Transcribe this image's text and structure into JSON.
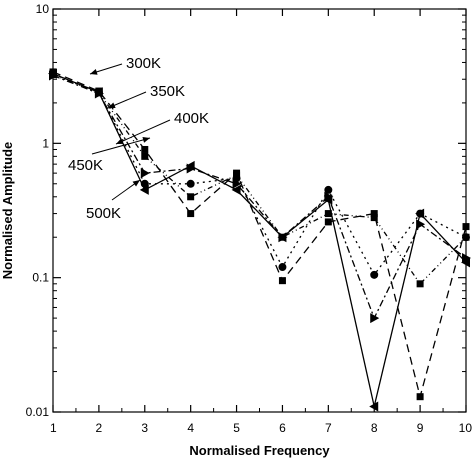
{
  "chart_data": {
    "type": "line",
    "xlabel": "Normalised Frequency",
    "ylabel": "Normalised Amplitude",
    "x": [
      1,
      2,
      3,
      4,
      5,
      6,
      7,
      8,
      9,
      10
    ],
    "xlim": [
      1,
      10
    ],
    "ylim": [
      0.01,
      10
    ],
    "yscale": "log",
    "x_ticks": [
      "1",
      "2",
      "3",
      "4",
      "5",
      "6",
      "7",
      "8",
      "9",
      "10"
    ],
    "y_ticks": [
      "10",
      "1",
      "0.1",
      "0.01"
    ],
    "grid": false,
    "legend": "none",
    "series": [
      {
        "name": "300K",
        "marker": "square",
        "dash": "8,5",
        "values": [
          3.4,
          2.45,
          0.9,
          0.3,
          0.6,
          0.095,
          0.26,
          0.3,
          0.013,
          0.24
        ]
      },
      {
        "name": "350K",
        "marker": "circle",
        "dash": "2,4",
        "values": [
          3.3,
          2.4,
          0.5,
          0.5,
          0.55,
          0.12,
          0.45,
          0.105,
          0.3,
          0.2
        ]
      },
      {
        "name": "400K",
        "marker": "triangle-right",
        "dash": "7,3,2,3",
        "values": [
          3.2,
          2.35,
          0.6,
          0.65,
          0.5,
          0.2,
          0.4,
          0.05,
          0.25,
          0.14
        ]
      },
      {
        "name": "450K",
        "marker": "square",
        "dash": "5,3,1,3,1,3",
        "values": [
          3.25,
          2.38,
          0.8,
          0.4,
          0.58,
          0.2,
          0.3,
          0.28,
          0.09,
          0.2
        ]
      },
      {
        "name": "500K",
        "marker": "triangle-left",
        "dash": "",
        "values": [
          3.3,
          2.4,
          0.45,
          0.68,
          0.45,
          0.2,
          0.38,
          0.011,
          0.3,
          0.13
        ]
      }
    ],
    "annotations": [
      {
        "text": "300K"
      },
      {
        "text": "350K"
      },
      {
        "text": "400K"
      },
      {
        "text": "450K"
      },
      {
        "text": "500K"
      }
    ]
  }
}
